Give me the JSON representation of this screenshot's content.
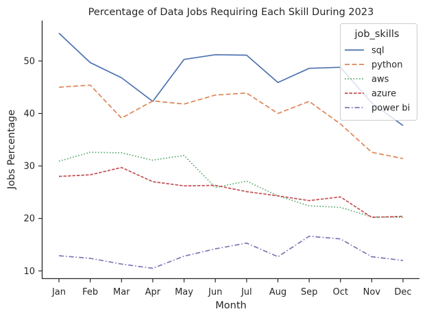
{
  "chart_data": {
    "type": "line",
    "title": "Percentage of Data Jobs Requiring Each Skill During 2023",
    "xlabel": "Month",
    "ylabel": "Jobs Percentage",
    "categories": [
      "Jan",
      "Feb",
      "Mar",
      "Apr",
      "May",
      "Jun",
      "Jul",
      "Aug",
      "Sep",
      "Oct",
      "Nov",
      "Dec"
    ],
    "ylim": [
      8.6,
      57.7
    ],
    "yticks": [
      10,
      20,
      30,
      40,
      50
    ],
    "grid": false,
    "legend": {
      "title": "job_skills",
      "placement": "top-right"
    },
    "series": [
      {
        "name": "sql",
        "color": "#4c72b0",
        "dash": "solid",
        "values": [
          55.3,
          49.7,
          46.8,
          42.3,
          50.3,
          51.2,
          51.1,
          45.9,
          48.6,
          48.8,
          42.0,
          37.7
        ]
      },
      {
        "name": "python",
        "color": "#dd8452",
        "dash": "dashed",
        "values": [
          45.0,
          45.4,
          39.1,
          42.4,
          41.8,
          43.5,
          43.9,
          40.0,
          42.3,
          38.0,
          32.6,
          31.4
        ]
      },
      {
        "name": "aws",
        "color": "#55a868",
        "dash": "dotted",
        "values": [
          30.9,
          32.6,
          32.5,
          31.1,
          32.0,
          25.9,
          27.1,
          24.3,
          22.4,
          22.1,
          20.3,
          20.2
        ]
      },
      {
        "name": "azure",
        "color": "#c44e52",
        "dash": "dashed-short",
        "values": [
          28.0,
          28.3,
          29.7,
          27.0,
          26.2,
          26.3,
          25.1,
          24.3,
          23.4,
          24.1,
          20.2,
          20.4
        ]
      },
      {
        "name": "power bi",
        "color": "#8172b3",
        "dash": "dashdot",
        "values": [
          12.9,
          12.4,
          11.3,
          10.5,
          12.8,
          14.2,
          15.3,
          12.7,
          16.6,
          16.1,
          12.7,
          12.0
        ]
      }
    ]
  }
}
